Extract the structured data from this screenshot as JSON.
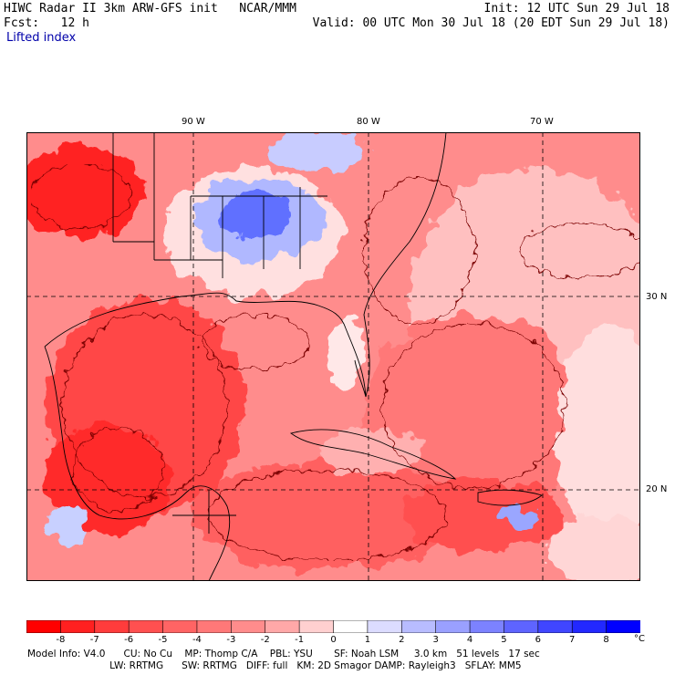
{
  "header": {
    "title": "HIWC Radar II 3km ARW-GFS init   NCAR/MMM",
    "fcst": "Fcst:   12 h",
    "init": "Init: 12 UTC Sun 29 Jul 18",
    "valid": "Valid: 00 UTC Mon 30 Jul 18 (20 EDT Sun 29 Jul 18)",
    "field": "Lifted index"
  },
  "map": {
    "lon_labels": [
      "90 W",
      "80 W",
      "70 W"
    ],
    "lat_labels": [
      "30 N",
      "20 N"
    ],
    "colors": {
      "strong_unstable": "#ff0000",
      "unstable": "#ff5a5a",
      "moderate": "#ff8c8c",
      "weak": "#ffc8c8",
      "neutral": "#ffffff",
      "stable": "#9aa6ff",
      "strong_stable": "#5a6bff",
      "contour": "#7a0000"
    }
  },
  "colorbar": {
    "ticks": [
      "-8",
      "-7",
      "-6",
      "-5",
      "-4",
      "-3",
      "-2",
      "-1",
      "0",
      "1",
      "2",
      "3",
      "4",
      "5",
      "6",
      "7",
      "8"
    ],
    "unit": "°C",
    "colors": [
      "#ff0000",
      "#ff2020",
      "#ff3c3c",
      "#ff5050",
      "#ff6464",
      "#ff7878",
      "#ff8c8c",
      "#ffa8a8",
      "#ffd0d0",
      "#ffffff",
      "#dcdcff",
      "#b8bcff",
      "#9aa0ff",
      "#7c82ff",
      "#5e64ff",
      "#4046ff",
      "#2228ff",
      "#0000ff"
    ]
  },
  "model_info": {
    "line1": "Model Info: V4.0      CU: No Cu    MP: Thomp C/A    PBL: YSU       SF: Noah LSM     3.0 km   51 levels   17 sec",
    "line2": "                           LW: RRTMG      SW: RRTMG   DIFF: full   KM: 2D Smagor DAMP: Rayleigh3   SFLAY: MM5"
  }
}
